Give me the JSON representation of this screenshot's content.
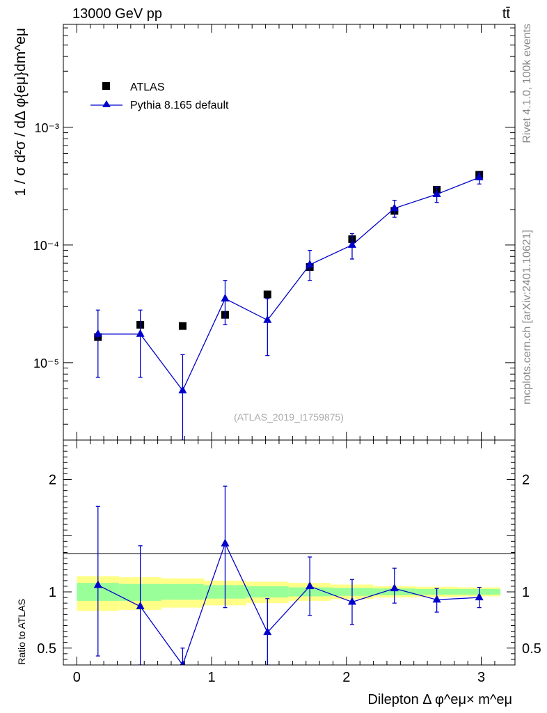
{
  "header": {
    "energy_label": "13000 GeV pp",
    "process_label": "tt̄",
    "side_rivet": "Rivet 4.1.0,  100k events",
    "side_site": "mcplots.cern.ch [arXiv:2401.10621]",
    "analysis_id": "(ATLAS_2019_I1759875)"
  },
  "colors": {
    "data": "#000000",
    "mc": "#0000cc",
    "band_inner": "#99ff99",
    "band_outer": "#ffff88"
  },
  "chart_data": [
    {
      "type": "scatter",
      "name": "main",
      "ylabel": "1 / σ  d²σ / dΔ φ{eμ}dm^eμ",
      "yscale": "log",
      "xlim": [
        -0.1,
        3.25
      ],
      "ylim": [
        2.2e-06,
        0.0075
      ],
      "yticks": [
        {
          "value": 1e-05,
          "label": "10⁻⁵"
        },
        {
          "value": 0.0001,
          "label": "10⁻⁴"
        },
        {
          "value": 0.001,
          "label": "10⁻³"
        }
      ],
      "legend": [
        {
          "label": "ATLAS",
          "series": "data"
        },
        {
          "label": "Pythia 8.165 default",
          "series": "mc"
        }
      ],
      "x": [
        0.157,
        0.471,
        0.785,
        1.1,
        1.414,
        1.728,
        2.042,
        2.356,
        2.67,
        2.985
      ],
      "series": [
        {
          "name": "ATLAS",
          "key": "data",
          "values": [
            1.65e-05,
            2.1e-05,
            2.05e-05,
            2.55e-05,
            3.8e-05,
            6.5e-05,
            0.000112,
            0.000195,
            0.000295,
            0.000395
          ]
        },
        {
          "name": "Pythia 8.165 default",
          "key": "mc",
          "values": [
            1.75e-05,
            1.75e-05,
            5.8e-06,
            3.5e-05,
            2.3e-05,
            6.8e-05,
            0.0001,
            0.000205,
            0.00027,
            0.000375
          ],
          "err_low": [
            7.5e-06,
            7.5e-06,
            1e-07,
            2.1e-05,
            1.15e-05,
            5e-05,
            7.6e-05,
            0.000172,
            0.00023,
            0.00033
          ],
          "err_high": [
            2.8e-05,
            2.8e-05,
            1.17e-05,
            5e-05,
            3.5e-05,
            9e-05,
            0.000125,
            0.00024,
            0.00031,
            0.00041
          ]
        }
      ]
    },
    {
      "type": "line",
      "name": "ratio",
      "ylabel": "Ratio to ATLAS",
      "xlabel": "Dilepton Δ φ^eμ× m^eμ",
      "xlim": [
        -0.1,
        3.25
      ],
      "ylim": [
        0.35,
        2.35
      ],
      "xticks": [
        {
          "value": 0,
          "label": "0"
        },
        {
          "value": 1,
          "label": "1"
        },
        {
          "value": 2,
          "label": "2"
        },
        {
          "value": 3,
          "label": "3"
        }
      ],
      "yticks": [
        {
          "value": 0.5,
          "label": "0.5"
        },
        {
          "value": 1,
          "label": "1"
        },
        {
          "value": 2,
          "label": "2"
        }
      ],
      "bins": [
        0,
        0.314,
        0.628,
        0.942,
        1.257,
        1.571,
        1.885,
        2.199,
        2.513,
        2.827,
        3.142
      ],
      "band_inner": [
        [
          0.92,
          1.08
        ],
        [
          0.92,
          1.07
        ],
        [
          0.93,
          1.07
        ],
        [
          0.94,
          1.06
        ],
        [
          0.95,
          1.05
        ],
        [
          0.96,
          1.04
        ],
        [
          0.965,
          1.035
        ],
        [
          0.97,
          1.03
        ],
        [
          0.975,
          1.025
        ],
        [
          0.975,
          1.025
        ]
      ],
      "band_outer": [
        [
          0.83,
          1.14
        ],
        [
          0.84,
          1.13
        ],
        [
          0.86,
          1.12
        ],
        [
          0.88,
          1.1
        ],
        [
          0.9,
          1.09
        ],
        [
          0.92,
          1.08
        ],
        [
          0.935,
          1.065
        ],
        [
          0.95,
          1.05
        ],
        [
          0.955,
          1.045
        ],
        [
          0.96,
          1.04
        ]
      ],
      "x": [
        0.157,
        0.471,
        0.785,
        1.1,
        1.414,
        1.728,
        2.042,
        2.356,
        2.67,
        2.985
      ],
      "series": [
        {
          "name": "Pythia 8.165 default",
          "key": "mc",
          "values": [
            1.06,
            0.87,
            0.28,
            1.43,
            0.64,
            1.05,
            0.91,
            1.03,
            0.93,
            0.95
          ],
          "err_low": [
            0.43,
            0.2,
            0.1,
            0.86,
            0.2,
            0.79,
            0.71,
            0.9,
            0.82,
            0.86
          ],
          "err_high": [
            1.76,
            1.41,
            0.5,
            1.94,
            0.94,
            1.31,
            1.11,
            1.21,
            1.03,
            1.04
          ]
        }
      ]
    }
  ]
}
